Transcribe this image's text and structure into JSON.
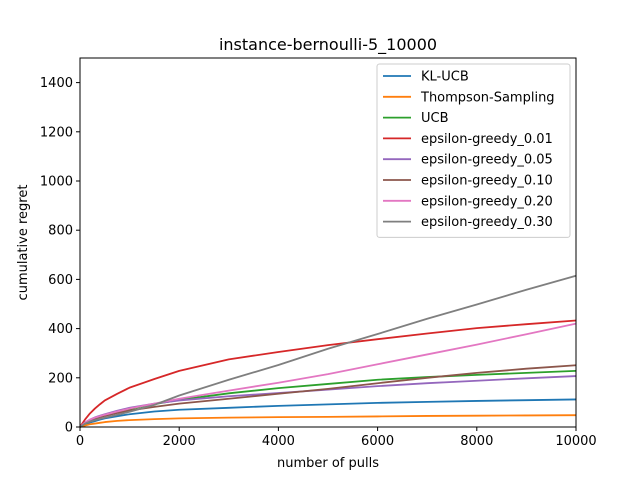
{
  "chart_data": {
    "type": "line",
    "title": "instance-bernoulli-5_10000",
    "xlabel": "number of pulls",
    "ylabel": "cumulative regret",
    "xlim": [
      0,
      10000
    ],
    "ylim": [
      0,
      1500
    ],
    "xticks": [
      0,
      2000,
      4000,
      6000,
      8000,
      10000
    ],
    "yticks": [
      0,
      200,
      400,
      600,
      800,
      1000,
      1200,
      1400
    ],
    "grid": false,
    "legend_position": "top-right",
    "x": [
      0,
      100,
      200,
      300,
      400,
      500,
      750,
      1000,
      1500,
      2000,
      3000,
      4000,
      5000,
      6000,
      7000,
      8000,
      9000,
      10000
    ],
    "series": [
      {
        "name": "KL-UCB",
        "color": "#1f77b4",
        "values": [
          0,
          10,
          18,
          24,
          30,
          35,
          44,
          52,
          63,
          70,
          78,
          86,
          92,
          98,
          102,
          106,
          109,
          112
        ]
      },
      {
        "name": "Thompson-Sampling",
        "color": "#ff7f0e",
        "values": [
          0,
          6,
          11,
          14,
          17,
          20,
          25,
          28,
          32,
          35,
          38,
          40,
          41,
          43,
          45,
          46,
          47,
          48
        ]
      },
      {
        "name": "UCB",
        "color": "#2ca02c",
        "values": [
          0,
          14,
          25,
          34,
          42,
          48,
          62,
          73,
          93,
          110,
          137,
          158,
          175,
          192,
          203,
          212,
          220,
          228
        ]
      },
      {
        "name": "epsilon-greedy_0.01",
        "color": "#d62728",
        "values": [
          0,
          30,
          55,
          75,
          92,
          108,
          135,
          160,
          195,
          228,
          275,
          305,
          333,
          357,
          380,
          402,
          418,
          433
        ]
      },
      {
        "name": "epsilon-greedy_0.05",
        "color": "#9467bd",
        "values": [
          0,
          18,
          30,
          39,
          46,
          52,
          66,
          78,
          95,
          108,
          125,
          138,
          152,
          166,
          178,
          188,
          198,
          207
        ]
      },
      {
        "name": "epsilon-greedy_0.10",
        "color": "#8c564b",
        "values": [
          0,
          15,
          26,
          34,
          40,
          45,
          57,
          67,
          82,
          95,
          115,
          135,
          155,
          178,
          200,
          220,
          237,
          251
        ]
      },
      {
        "name": "epsilon-greedy_0.20",
        "color": "#e377c2",
        "values": [
          0,
          18,
          30,
          38,
          44,
          50,
          63,
          75,
          95,
          115,
          148,
          180,
          215,
          255,
          295,
          335,
          377,
          420
        ]
      },
      {
        "name": "epsilon-greedy_0.30",
        "color": "#7f7f7f",
        "values": [
          0,
          14,
          22,
          28,
          33,
          38,
          50,
          62,
          90,
          128,
          192,
          252,
          318,
          378,
          440,
          498,
          558,
          615
        ]
      }
    ]
  }
}
